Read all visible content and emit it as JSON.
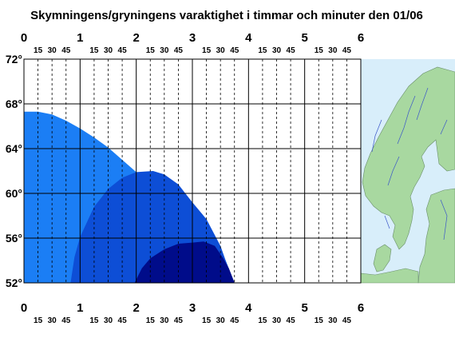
{
  "chart_data": {
    "type": "area",
    "title": "Skymningens/gryningens varaktighet i timmar och minuter den 01/06",
    "xlim": [
      0,
      6
    ],
    "ylim": [
      52,
      72
    ],
    "hour_ticks": [
      "0",
      "1",
      "2",
      "3",
      "4",
      "5",
      "6"
    ],
    "minute_ticks": [
      "15",
      "30",
      "45"
    ],
    "lat_ticks": [
      "52°",
      "56°",
      "60°",
      "64°",
      "68°",
      "72°"
    ],
    "lat_values": [
      52,
      56,
      60,
      64,
      68,
      72
    ],
    "grid": true,
    "series": [
      {
        "color": "#1b7ef5",
        "points": [
          [
            0,
            67.3
          ],
          [
            0.25,
            67.3
          ],
          [
            0.5,
            67.05
          ],
          [
            0.75,
            66.5
          ],
          [
            1.0,
            65.8
          ],
          [
            1.25,
            65.0
          ],
          [
            1.5,
            64.1
          ],
          [
            1.75,
            63.0
          ],
          [
            2.0,
            61.9
          ],
          [
            2.25,
            60.8
          ],
          [
            2.5,
            59.7
          ],
          [
            2.75,
            58.8
          ],
          [
            3.0,
            57.9
          ],
          [
            3.25,
            56.6
          ],
          [
            3.5,
            55.0
          ],
          [
            3.6,
            53.9
          ],
          [
            3.75,
            52.0
          ]
        ]
      },
      {
        "color": "#0d4ed6",
        "points": [
          [
            0.83,
            52.0
          ],
          [
            0.9,
            54.3
          ],
          [
            1.0,
            56.1
          ],
          [
            1.25,
            58.8
          ],
          [
            1.5,
            60.4
          ],
          [
            1.75,
            61.4
          ],
          [
            2.0,
            61.9
          ],
          [
            2.3,
            62.0
          ],
          [
            2.5,
            61.7
          ],
          [
            2.75,
            60.8
          ],
          [
            3.0,
            59.2
          ],
          [
            3.25,
            57.7
          ],
          [
            3.5,
            55.3
          ],
          [
            3.6,
            53.9
          ],
          [
            3.75,
            52.0
          ]
        ]
      },
      {
        "color": "#000c8a",
        "points": [
          [
            1.97,
            52.0
          ],
          [
            2.1,
            53.3
          ],
          [
            2.25,
            54.2
          ],
          [
            2.5,
            55.0
          ],
          [
            2.75,
            55.5
          ],
          [
            3.0,
            55.6
          ],
          [
            3.2,
            55.7
          ],
          [
            3.4,
            55.3
          ],
          [
            3.55,
            54.2
          ],
          [
            3.65,
            53.3
          ],
          [
            3.75,
            52.0
          ]
        ]
      }
    ]
  },
  "map": {
    "land_color": "#a8d8a0",
    "sea_color": "#d8eefa"
  }
}
